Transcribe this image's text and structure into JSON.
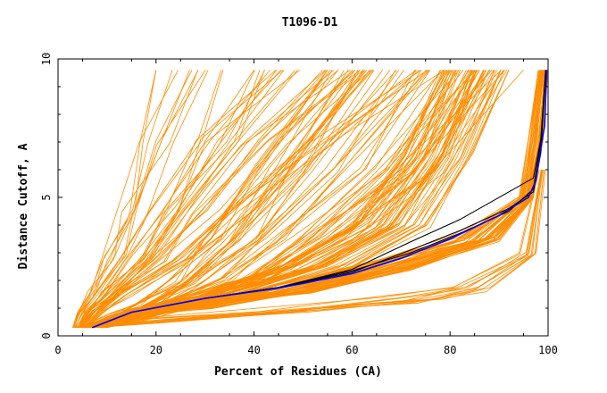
{
  "chart_data": {
    "type": "line",
    "title": "T1096-D1",
    "xlabel": "Percent of Residues (CA)",
    "ylabel": "Distance Cutoff, A",
    "xlim": [
      0,
      100
    ],
    "ylim": [
      0,
      10
    ],
    "x_ticks": [
      0,
      20,
      40,
      60,
      80,
      100
    ],
    "y_ticks": [
      0,
      5,
      10
    ],
    "grid": false,
    "legend": "none",
    "colors": {
      "background_models": "#ff8c00",
      "highlight_dark": "#000000",
      "highlight_blue": "#0000ff"
    },
    "background_groups": [
      {
        "name": "steep",
        "count": 45,
        "x": [
          [
            3,
            6
          ],
          [
            4,
            9
          ],
          [
            6,
            15
          ],
          [
            9,
            28
          ],
          [
            12,
            40
          ],
          [
            16,
            58
          ],
          [
            20,
            80
          ]
        ],
        "y": [
          0.3,
          0.8,
          1.5,
          2.8,
          4.5,
          7,
          9.6
        ]
      },
      {
        "name": "mid",
        "count": 55,
        "x": [
          [
            4,
            10
          ],
          [
            10,
            20
          ],
          [
            16,
            30
          ],
          [
            22,
            45
          ],
          [
            30,
            60
          ],
          [
            40,
            80
          ],
          [
            55,
            95
          ]
        ],
        "y": [
          0.3,
          0.7,
          1.2,
          2,
          3.5,
          6,
          9.6
        ]
      },
      {
        "name": "shallow",
        "count": 45,
        "x": [
          [
            6,
            10
          ],
          [
            13,
            18
          ],
          [
            28,
            40
          ],
          [
            45,
            60
          ],
          [
            60,
            76
          ],
          [
            70,
            85
          ],
          [
            78,
            92
          ]
        ],
        "y": [
          0.3,
          0.8,
          1.5,
          2.5,
          4,
          6.5,
          9.6
        ]
      },
      {
        "name": "near_best",
        "count": 45,
        "x": [
          [
            6,
            9
          ],
          [
            13,
            17
          ],
          [
            22,
            32
          ],
          [
            40,
            52
          ],
          [
            58,
            72
          ],
          [
            80,
            90
          ],
          [
            94,
            97
          ],
          [
            96,
            99
          ],
          [
            98,
            100
          ]
        ],
        "y": [
          0.3,
          0.8,
          1.1,
          1.6,
          2.4,
          3.5,
          5,
          7,
          9.6
        ]
      },
      {
        "name": "lower",
        "count": 12,
        "x": [
          [
            3,
            8
          ],
          [
            14,
            22
          ],
          [
            40,
            55
          ],
          [
            65,
            80
          ],
          [
            80,
            89
          ],
          [
            94,
            98
          ],
          [
            98,
            99.5
          ]
        ],
        "y": [
          0.3,
          0.5,
          0.9,
          1.3,
          1.7,
          3,
          6
        ]
      }
    ],
    "highlight_series": [
      {
        "color": "black",
        "x": [
          7,
          15,
          30,
          45,
          60,
          72,
          82,
          92,
          97,
          98.5,
          99.5
        ],
        "y": [
          0.3,
          0.85,
          1.35,
          1.75,
          2.4,
          3.4,
          4.2,
          5.2,
          5.7,
          7.1,
          9.6
        ]
      },
      {
        "color": "black",
        "x": [
          7,
          15,
          30,
          45,
          60,
          72,
          82,
          92,
          97,
          98.5,
          99.5
        ],
        "y": [
          0.3,
          0.85,
          1.35,
          1.75,
          2.3,
          3.1,
          3.8,
          4.6,
          5.2,
          6.6,
          9.6
        ]
      },
      {
        "color": "black",
        "x": [
          7,
          15,
          30,
          45,
          60,
          72,
          82,
          92,
          97,
          98.5,
          99.5
        ],
        "y": [
          0.3,
          0.85,
          1.35,
          1.75,
          2.35,
          3.0,
          3.7,
          4.5,
          5.3,
          7.0,
          9.6
        ]
      },
      {
        "color": "blue",
        "x": [
          7,
          15,
          30,
          45,
          60,
          70,
          80,
          90,
          96,
          97.5,
          98.5,
          99.3,
          99.7
        ],
        "y": [
          0.3,
          0.85,
          1.35,
          1.72,
          2.25,
          2.8,
          3.5,
          4.35,
          5.0,
          5.6,
          6.8,
          7.6,
          9.6
        ]
      }
    ]
  }
}
